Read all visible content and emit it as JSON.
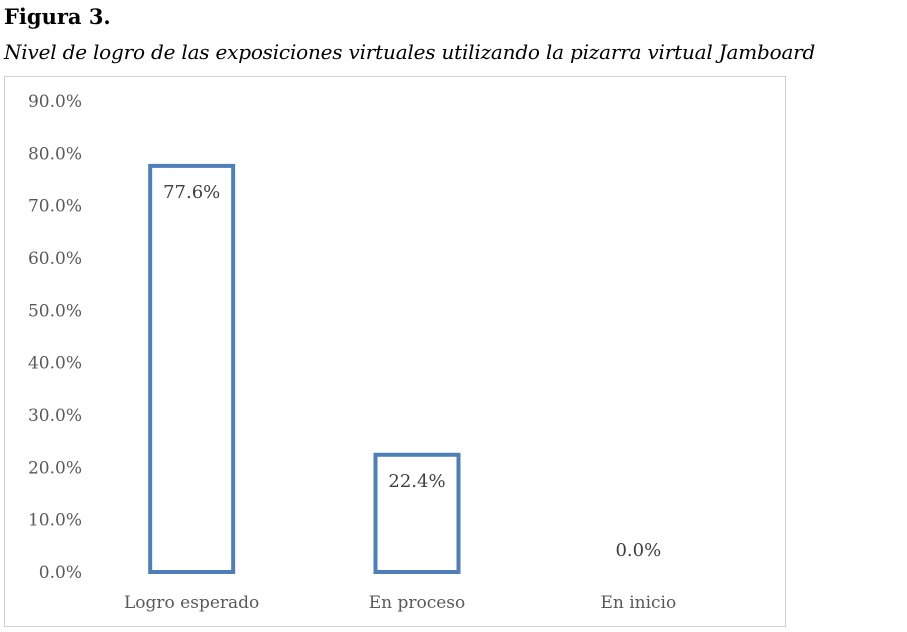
{
  "figure": {
    "label": "Figura 3.",
    "caption": "Nivel de logro de las exposiciones virtuales utilizando la pizarra virtual Jamboard"
  },
  "chart_data": {
    "type": "bar",
    "categories": [
      "Logro esperado",
      "En proceso",
      "En inicio"
    ],
    "values": [
      77.6,
      22.4,
      0.0
    ],
    "data_labels": [
      "77.6%",
      "22.4%",
      "0.0%"
    ],
    "ylim": [
      0,
      90
    ],
    "yticks": [
      0,
      10,
      20,
      30,
      40,
      50,
      60,
      70,
      80,
      90
    ],
    "ytick_labels": [
      "0.0%",
      "10.0%",
      "20.0%",
      "30.0%",
      "40.0%",
      "50.0%",
      "60.0%",
      "70.0%",
      "80.0%",
      "90.0%"
    ],
    "grid": false,
    "legend": "none",
    "bar_style": "outline",
    "bar_color": "#4f7fb8"
  }
}
